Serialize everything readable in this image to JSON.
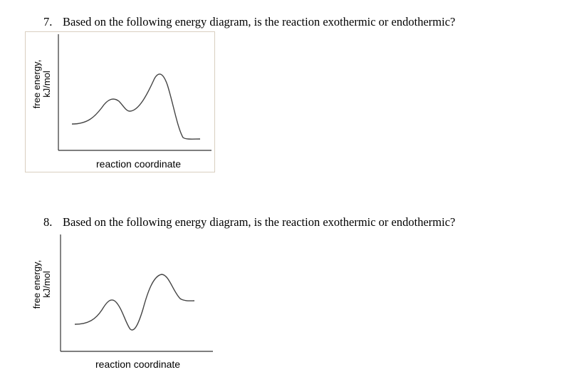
{
  "questions": [
    {
      "number": "7.",
      "text": "Based on the following energy diagram, is the reaction exothermic or endothermic?",
      "diagram": {
        "ylabel_line1": "free energy,",
        "ylabel_line2": "kJ/mol",
        "xlabel": "reaction coordinate",
        "profile": "reactants higher than products (energy drops after the main peak)"
      }
    },
    {
      "number": "8.",
      "text": "Based on the following energy diagram, is the reaction exothermic or endothermic?",
      "diagram": {
        "ylabel_line1": "free energy,",
        "ylabel_line2": "kJ/mol",
        "xlabel": "reaction coordinate",
        "profile": "products higher than reactants (energy stays high after the main peak)"
      }
    }
  ],
  "colors": {
    "text": "#000000",
    "axis": "#333333",
    "curve": "#444444",
    "frame": "#d9cfc0"
  }
}
